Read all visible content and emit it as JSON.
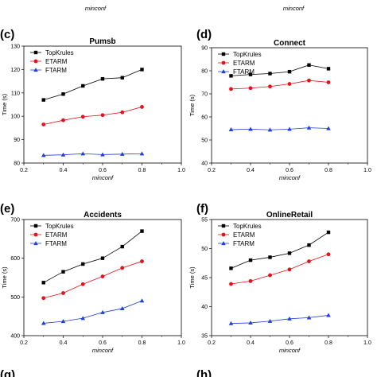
{
  "top_labels": [
    "minconf",
    "minconf",
    "(g)",
    "(h)"
  ],
  "chart_data": [
    {
      "panel": "(c)",
      "type": "line",
      "title": "Pumsb",
      "xlabel": "minconf",
      "ylabel": "Time (s)",
      "xlim": [
        0.2,
        1.0
      ],
      "ylim": [
        80,
        130
      ],
      "xticks": [
        "0.2",
        "0.4",
        "0.6",
        "0.8",
        "1.0"
      ],
      "yticks": [
        "80",
        "90",
        "100",
        "110",
        "120",
        "130"
      ],
      "x": [
        0.3,
        0.4,
        0.5,
        0.6,
        0.7,
        0.8
      ],
      "legend_position": "top-left",
      "series": [
        {
          "name": "TopKrules",
          "color": "#000000",
          "marker": "square",
          "values": [
            107,
            109.5,
            113,
            116,
            116.5,
            120
          ]
        },
        {
          "name": "ETARM",
          "color": "#e8101b",
          "marker": "circle",
          "values": [
            96.5,
            98.3,
            99.8,
            100.5,
            101.7,
            104
          ]
        },
        {
          "name": "FTARM",
          "color": "#1f3fd6",
          "marker": "triangle",
          "values": [
            83.3,
            83.5,
            84,
            83.6,
            83.8,
            84
          ]
        }
      ]
    },
    {
      "panel": "(d)",
      "type": "line",
      "title": "Connect",
      "xlabel": "minconf",
      "ylabel": "Time (s)",
      "xlim": [
        0.2,
        1.0
      ],
      "ylim": [
        40,
        90
      ],
      "xticks": [
        "0.2",
        "0.4",
        "0.6",
        "0.8",
        "1.0"
      ],
      "yticks": [
        "40",
        "50",
        "60",
        "70",
        "80",
        "90"
      ],
      "x": [
        0.3,
        0.4,
        0.5,
        0.6,
        0.7,
        0.8
      ],
      "legend_position": "top-left",
      "series": [
        {
          "name": "TopKrules",
          "color": "#000000",
          "marker": "square",
          "values": [
            77.8,
            78.4,
            78.8,
            79.6,
            82.5,
            80.9
          ]
        },
        {
          "name": "ETARM",
          "color": "#e8101b",
          "marker": "circle",
          "values": [
            72.1,
            72.5,
            73.2,
            74.3,
            75.8,
            75
          ]
        },
        {
          "name": "FTARM",
          "color": "#1f3fd6",
          "marker": "triangle",
          "values": [
            54.5,
            54.7,
            54.4,
            54.7,
            55.3,
            55
          ]
        }
      ]
    },
    {
      "panel": "(e)",
      "type": "line",
      "title": "Accidents",
      "xlabel": "minconf",
      "ylabel": "Time (s)",
      "xlim": [
        0.2,
        1.0
      ],
      "ylim": [
        400,
        700
      ],
      "xticks": [
        "0.2",
        "0.4",
        "0.6",
        "0.8",
        "1.0"
      ],
      "yticks": [
        "400",
        "500",
        "600",
        "700"
      ],
      "x": [
        0.3,
        0.4,
        0.5,
        0.6,
        0.7,
        0.8
      ],
      "legend_position": "top-left",
      "series": [
        {
          "name": "TopKrules",
          "color": "#000000",
          "marker": "square",
          "values": [
            537,
            565,
            585,
            600,
            630,
            670
          ]
        },
        {
          "name": "ETARM",
          "color": "#e8101b",
          "marker": "circle",
          "values": [
            497,
            510,
            533,
            553,
            575,
            592
          ]
        },
        {
          "name": "FTARM",
          "color": "#1f3fd6",
          "marker": "triangle",
          "values": [
            432,
            437,
            445,
            460,
            470,
            490
          ]
        }
      ]
    },
    {
      "panel": "(f)",
      "type": "line",
      "title": "OnlineRetail",
      "xlabel": "minconf",
      "ylabel": "Time (s)",
      "xlim": [
        0.2,
        1.0
      ],
      "ylim": [
        35,
        55
      ],
      "xticks": [
        "0.2",
        "0.4",
        "0.6",
        "0.8",
        "1.0"
      ],
      "yticks": [
        "35",
        "40",
        "45",
        "50",
        "55"
      ],
      "x": [
        0.3,
        0.4,
        0.5,
        0.6,
        0.7,
        0.8
      ],
      "legend_position": "top-left",
      "series": [
        {
          "name": "TopKrules",
          "color": "#000000",
          "marker": "square",
          "values": [
            46.6,
            48,
            48.5,
            49.2,
            50.6,
            52.8
          ]
        },
        {
          "name": "ETARM",
          "color": "#e8101b",
          "marker": "circle",
          "values": [
            43.9,
            44.4,
            45.4,
            46.4,
            47.8,
            49
          ]
        },
        {
          "name": "FTARM",
          "color": "#1f3fd6",
          "marker": "triangle",
          "values": [
            37.1,
            37.2,
            37.5,
            37.9,
            38.1,
            38.5
          ]
        }
      ]
    }
  ]
}
